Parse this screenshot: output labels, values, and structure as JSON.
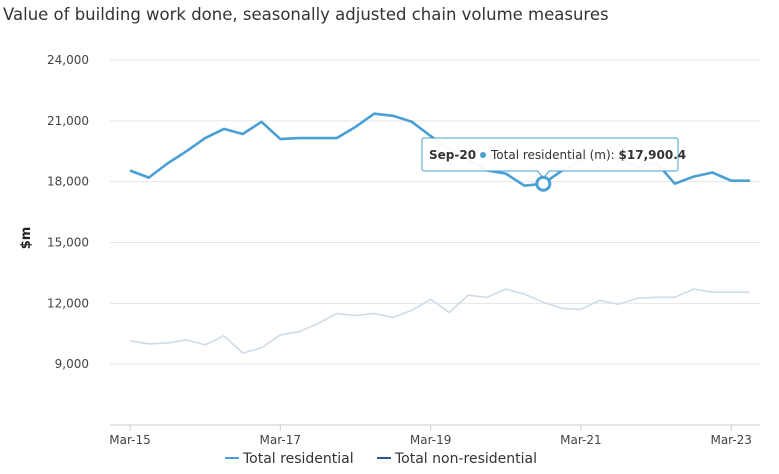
{
  "title": "Value of building work done, seasonally adjusted chain volume measures",
  "chart_data": {
    "type": "line",
    "title": "Value of building work done, seasonally adjusted chain volume measures",
    "xlabel": "",
    "ylabel": "$m",
    "ylim": [
      6000,
      24000
    ],
    "y_ticks": [
      "9,000",
      "12,000",
      "15,000",
      "18,000",
      "21,000",
      "24,000"
    ],
    "y_tick_values": [
      9000,
      12000,
      15000,
      18000,
      21000,
      24000
    ],
    "x_ticks": [
      "Mar-15",
      "Mar-17",
      "Mar-19",
      "Mar-21",
      "Mar-23"
    ],
    "grid": true,
    "legend_position": "bottom",
    "x": [
      "Mar-15",
      "Jun-15",
      "Sep-15",
      "Dec-15",
      "Mar-16",
      "Jun-16",
      "Sep-16",
      "Dec-16",
      "Mar-17",
      "Jun-17",
      "Sep-17",
      "Dec-17",
      "Mar-18",
      "Jun-18",
      "Sep-18",
      "Dec-18",
      "Mar-19",
      "Jun-19",
      "Sep-19",
      "Dec-19",
      "Mar-20",
      "Jun-20",
      "Sep-20",
      "Dec-20",
      "Mar-21",
      "Jun-21",
      "Sep-21",
      "Dec-21",
      "Mar-22",
      "Jun-22",
      "Sep-22",
      "Dec-22",
      "Mar-23",
      "Jun-23"
    ],
    "series": [
      {
        "name": "Total residential",
        "color": "#4a9fd4",
        "values": [
          18550,
          18200,
          18900,
          19500,
          20150,
          20600,
          20350,
          20950,
          20100,
          20150,
          20150,
          20150,
          20700,
          21350,
          21250,
          20950,
          20250,
          19600,
          19100,
          18550,
          18400,
          17800,
          17900,
          18550,
          19050,
          19350,
          19150,
          18700,
          18950,
          17900,
          18250,
          18450,
          18050,
          18050
        ]
      },
      {
        "name": "Total non-residential",
        "color": "#cfdbe6",
        "values": [
          10150,
          10000,
          10050,
          10200,
          9950,
          10400,
          9550,
          9800,
          10450,
          10600,
          11000,
          11500,
          11400,
          11500,
          11300,
          11650,
          12200,
          11550,
          12400,
          12300,
          12700,
          12450,
          12050,
          11750,
          11700,
          12150,
          11950,
          12250,
          12300,
          12300,
          12700,
          12550,
          12550,
          12550
        ]
      }
    ],
    "legend": [
      {
        "label": "Total residential",
        "color": "#4a9fd4"
      },
      {
        "label": "Total non-residential",
        "color": "#2c5b8a"
      }
    ],
    "tooltip": {
      "date": "Sep-20",
      "series": "Total residential (m):",
      "value": "$17,900.4",
      "index": 22
    }
  }
}
